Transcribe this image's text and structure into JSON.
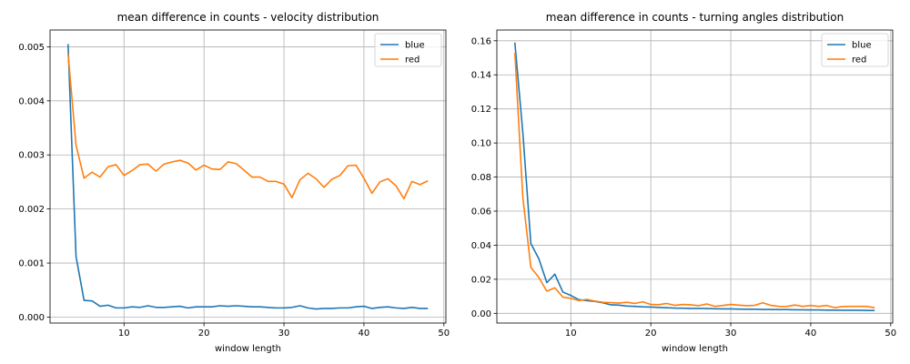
{
  "chart_data": [
    {
      "type": "line",
      "title": "mean difference in counts - velocity distribution",
      "xlabel": "window length",
      "ylabel": "",
      "xlim": [
        0.75,
        50.25
      ],
      "ylim": [
        -0.00011,
        0.00531
      ],
      "xticks": [
        10,
        20,
        30,
        40,
        50
      ],
      "xtick_labels": [
        "10",
        "20",
        "30",
        "40",
        "50"
      ],
      "yticks": [
        0,
        0.001,
        0.002,
        0.003,
        0.004,
        0.005
      ],
      "ytick_labels": [
        "0.000",
        "0.001",
        "0.002",
        "0.003",
        "0.004",
        "0.005"
      ],
      "grid": true,
      "legend": "top-right",
      "x": [
        3,
        4,
        5,
        6,
        7,
        8,
        9,
        10,
        11,
        12,
        13,
        14,
        15,
        16,
        17,
        18,
        19,
        20,
        21,
        22,
        23,
        24,
        25,
        26,
        27,
        28,
        29,
        30,
        31,
        32,
        33,
        34,
        35,
        36,
        37,
        38,
        39,
        40,
        41,
        42,
        43,
        44,
        45,
        46,
        47,
        48
      ],
      "series": [
        {
          "name": "blue",
          "color": "#1f77b4",
          "values": [
            0.00505,
            0.00112,
            0.00031,
            0.0003,
            0.0002,
            0.00022,
            0.00017,
            0.00017,
            0.00019,
            0.00018,
            0.00021,
            0.00018,
            0.00018,
            0.00019,
            0.0002,
            0.00017,
            0.00019,
            0.00019,
            0.00019,
            0.00021,
            0.0002,
            0.00021,
            0.0002,
            0.00019,
            0.00019,
            0.00018,
            0.00017,
            0.00017,
            0.00018,
            0.00021,
            0.00017,
            0.00015,
            0.00016,
            0.00016,
            0.00017,
            0.00017,
            0.00019,
            0.0002,
            0.00016,
            0.00018,
            0.00019,
            0.00017,
            0.00016,
            0.00018,
            0.00016,
            0.00016
          ]
        },
        {
          "name": "red",
          "color": "#ff7f0e",
          "values": [
            0.00488,
            0.00318,
            0.00257,
            0.00268,
            0.00259,
            0.00278,
            0.00282,
            0.00262,
            0.00271,
            0.00282,
            0.00283,
            0.0027,
            0.00283,
            0.00287,
            0.0029,
            0.00285,
            0.00272,
            0.00281,
            0.00274,
            0.00273,
            0.00287,
            0.00284,
            0.00272,
            0.00259,
            0.00259,
            0.00251,
            0.00251,
            0.00246,
            0.00221,
            0.00254,
            0.00266,
            0.00256,
            0.0024,
            0.00255,
            0.00262,
            0.0028,
            0.00281,
            0.00257,
            0.00229,
            0.0025,
            0.00256,
            0.00243,
            0.00219,
            0.00251,
            0.00245,
            0.00252
          ]
        }
      ]
    },
    {
      "type": "line",
      "title": "mean difference in counts - turning angles distribution",
      "xlabel": "window length",
      "ylabel": "",
      "xlim": [
        0.75,
        50.25
      ],
      "ylim": [
        -0.0057,
        0.1663
      ],
      "xticks": [
        10,
        20,
        30,
        40,
        50
      ],
      "xtick_labels": [
        "10",
        "20",
        "30",
        "40",
        "50"
      ],
      "yticks": [
        0,
        0.02,
        0.04,
        0.06,
        0.08,
        0.1,
        0.12,
        0.14,
        0.16
      ],
      "ytick_labels": [
        "0.00",
        "0.02",
        "0.04",
        "0.06",
        "0.08",
        "0.10",
        "0.12",
        "0.14",
        "0.16"
      ],
      "grid": true,
      "legend": "top-right",
      "x": [
        3,
        4,
        5,
        6,
        7,
        8,
        9,
        10,
        11,
        12,
        13,
        14,
        15,
        16,
        17,
        18,
        19,
        20,
        21,
        22,
        23,
        24,
        25,
        26,
        27,
        28,
        29,
        30,
        31,
        32,
        33,
        34,
        35,
        36,
        37,
        38,
        39,
        40,
        41,
        42,
        43,
        44,
        45,
        46,
        47,
        48
      ],
      "series": [
        {
          "name": "blue",
          "color": "#1f77b4",
          "values": [
            0.159,
            0.106,
            0.041,
            0.032,
            0.018,
            0.023,
            0.0125,
            0.0105,
            0.008,
            0.0075,
            0.007,
            0.0062,
            0.005,
            0.0048,
            0.0043,
            0.0041,
            0.0038,
            0.0037,
            0.0035,
            0.0033,
            0.0031,
            0.003,
            0.0029,
            0.0029,
            0.0028,
            0.0027,
            0.0026,
            0.0026,
            0.0025,
            0.0024,
            0.0024,
            0.0023,
            0.0023,
            0.0022,
            0.0022,
            0.0021,
            0.0021,
            0.002,
            0.002,
            0.0019,
            0.0019,
            0.0018,
            0.0018,
            0.0018,
            0.0017,
            0.0017
          ]
        },
        {
          "name": "red",
          "color": "#ff7f0e",
          "values": [
            0.153,
            0.068,
            0.027,
            0.021,
            0.013,
            0.015,
            0.0095,
            0.0088,
            0.0075,
            0.0082,
            0.0072,
            0.0065,
            0.0063,
            0.006,
            0.0065,
            0.0058,
            0.0068,
            0.0052,
            0.0051,
            0.0058,
            0.0047,
            0.0052,
            0.005,
            0.0045,
            0.0055,
            0.0041,
            0.0046,
            0.0052,
            0.0048,
            0.0045,
            0.0047,
            0.0062,
            0.0047,
            0.0041,
            0.004,
            0.0049,
            0.0041,
            0.0046,
            0.0041,
            0.0046,
            0.0033,
            0.004,
            0.0041,
            0.0041,
            0.0041,
            0.0033
          ]
        }
      ]
    }
  ]
}
